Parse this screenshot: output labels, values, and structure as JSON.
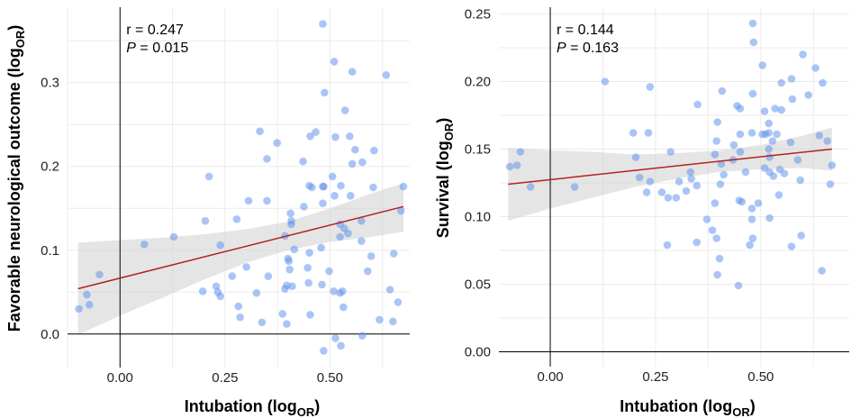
{
  "colors": {
    "point": "#6495ED",
    "fit_line": "#B22222",
    "ci_band": "#D3D3D3",
    "grid": "#EBEBEB",
    "zero_line": "#000000"
  },
  "chart_data": [
    {
      "type": "scatter",
      "xlabel": "Intubation (log",
      "xlabel_sub": "OR",
      "ylabel": "Favorable neurological outcome (log",
      "ylabel_sub": "OR",
      "annotation": {
        "r": "r = 0.247",
        "p_label": "P",
        "p_value": " = 0.015"
      },
      "xlim": [
        -0.125,
        0.69
      ],
      "ylim": [
        -0.04,
        0.39
      ],
      "x_ticks": [
        0.0,
        0.25,
        0.5
      ],
      "x_tick_labels": [
        "0.00",
        "0.25",
        "0.50"
      ],
      "y_ticks": [
        0.0,
        0.1,
        0.2,
        0.3
      ],
      "y_tick_labels": [
        "0.0",
        "0.1",
        "0.2",
        "0.3"
      ],
      "grid": true,
      "fit": {
        "intercept": 0.0667,
        "slope": 0.1265,
        "x_range": [
          -0.1,
          0.675
        ]
      },
      "ci": {
        "x": [
          -0.1,
          0,
          0.1,
          0.2,
          0.3,
          0.4,
          0.5,
          0.6,
          0.675
        ],
        "lower": [
          -0.001,
          0.022,
          0.043,
          0.065,
          0.085,
          0.1,
          0.11,
          0.116,
          0.122
        ],
        "upper": [
          0.109,
          0.112,
          0.115,
          0.119,
          0.125,
          0.134,
          0.15,
          0.168,
          0.18
        ]
      },
      "points": [
        [
          0.483,
          0.37
        ],
        [
          0.51,
          0.325
        ],
        [
          0.553,
          0.313
        ],
        [
          0.634,
          0.309
        ],
        [
          0.487,
          0.288
        ],
        [
          0.536,
          0.267
        ],
        [
          0.333,
          0.242
        ],
        [
          0.466,
          0.241
        ],
        [
          0.453,
          0.236
        ],
        [
          0.513,
          0.235
        ],
        [
          0.547,
          0.236
        ],
        [
          0.374,
          0.228
        ],
        [
          0.56,
          0.22
        ],
        [
          0.605,
          0.219
        ],
        [
          0.35,
          0.209
        ],
        [
          0.436,
          0.206
        ],
        [
          0.553,
          0.203
        ],
        [
          0.577,
          0.205
        ],
        [
          0.212,
          0.188
        ],
        [
          0.506,
          0.188
        ],
        [
          0.451,
          0.177
        ],
        [
          0.457,
          0.175
        ],
        [
          0.483,
          0.176
        ],
        [
          0.485,
          0.176
        ],
        [
          0.526,
          0.177
        ],
        [
          0.603,
          0.175
        ],
        [
          0.675,
          0.176
        ],
        [
          0.306,
          0.159
        ],
        [
          0.35,
          0.159
        ],
        [
          0.511,
          0.165
        ],
        [
          0.549,
          0.165
        ],
        [
          0.438,
          0.152
        ],
        [
          0.483,
          0.156
        ],
        [
          0.203,
          0.135
        ],
        [
          0.278,
          0.137
        ],
        [
          0.406,
          0.144
        ],
        [
          0.408,
          0.135
        ],
        [
          0.408,
          0.131
        ],
        [
          0.575,
          0.135
        ],
        [
          0.669,
          0.147
        ],
        [
          0.524,
          0.131
        ],
        [
          0.534,
          0.126
        ],
        [
          0.543,
          0.12
        ],
        [
          0.524,
          0.116
        ],
        [
          0.128,
          0.116
        ],
        [
          0.058,
          0.107
        ],
        [
          0.239,
          0.106
        ],
        [
          0.393,
          0.117
        ],
        [
          0.575,
          0.111
        ],
        [
          0.479,
          0.103
        ],
        [
          0.415,
          0.101
        ],
        [
          0.451,
          0.097
        ],
        [
          0.652,
          0.096
        ],
        [
          0.598,
          0.093
        ],
        [
          0.4,
          0.09
        ],
        [
          0.402,
          0.087
        ],
        [
          0.301,
          0.08
        ],
        [
          -0.049,
          0.071
        ],
        [
          0.404,
          0.077
        ],
        [
          0.447,
          0.079
        ],
        [
          0.498,
          0.075
        ],
        [
          0.59,
          0.075
        ],
        [
          0.267,
          0.069
        ],
        [
          0.353,
          0.069
        ],
        [
          0.229,
          0.057
        ],
        [
          0.397,
          0.058
        ],
        [
          0.41,
          0.057
        ],
        [
          0.393,
          0.054
        ],
        [
          0.449,
          0.061
        ],
        [
          0.481,
          0.059
        ],
        [
          -0.079,
          0.047
        ],
        [
          0.197,
          0.051
        ],
        [
          0.233,
          0.05
        ],
        [
          0.239,
          0.045
        ],
        [
          0.325,
          0.049
        ],
        [
          0.509,
          0.051
        ],
        [
          0.524,
          0.049
        ],
        [
          0.53,
          0.051
        ],
        [
          0.643,
          0.053
        ],
        [
          -0.073,
          0.035
        ],
        [
          -0.098,
          0.03
        ],
        [
          0.282,
          0.033
        ],
        [
          0.532,
          0.032
        ],
        [
          0.662,
          0.038
        ],
        [
          0.286,
          0.02
        ],
        [
          0.387,
          0.024
        ],
        [
          0.453,
          0.023
        ],
        [
          0.338,
          0.014
        ],
        [
          0.397,
          0.012
        ],
        [
          0.618,
          0.017
        ],
        [
          0.65,
          0.015
        ],
        [
          0.577,
          -0.002
        ],
        [
          0.513,
          -0.005
        ],
        [
          0.526,
          -0.014
        ],
        [
          0.485,
          -0.02
        ]
      ]
    },
    {
      "type": "scatter",
      "xlabel": "Intubation (log",
      "xlabel_sub": "OR",
      "ylabel": "Survival (log",
      "ylabel_sub": "OR",
      "annotation": {
        "r": "r = 0.144",
        "p_label": "P",
        "p_value": " = 0.163"
      },
      "xlim": [
        -0.122,
        0.71
      ],
      "ylim": [
        -0.011,
        0.255
      ],
      "x_ticks": [
        0.0,
        0.25,
        0.5
      ],
      "x_tick_labels": [
        "0.00",
        "0.25",
        "0.50"
      ],
      "y_ticks": [
        0.0,
        0.05,
        0.1,
        0.15,
        0.2,
        0.25
      ],
      "y_tick_labels": [
        "0.00",
        "0.05",
        "0.10",
        "0.15",
        "0.20",
        "0.25"
      ],
      "grid": true,
      "fit": {
        "intercept": 0.1274,
        "slope": 0.0338,
        "x_range": [
          -0.1,
          0.669
        ]
      },
      "ci": {
        "x": [
          -0.1,
          0,
          0.1,
          0.2,
          0.3,
          0.4,
          0.5,
          0.6,
          0.669
        ],
        "lower": [
          0.097,
          0.106,
          0.114,
          0.122,
          0.128,
          0.133,
          0.135,
          0.136,
          0.134
        ],
        "upper": [
          0.151,
          0.149,
          0.148,
          0.146,
          0.147,
          0.149,
          0.153,
          0.16,
          0.166
        ]
      },
      "points": [
        [
          0.481,
          0.243
        ],
        [
          0.483,
          0.229
        ],
        [
          0.6,
          0.22
        ],
        [
          0.504,
          0.212
        ],
        [
          0.63,
          0.21
        ],
        [
          0.13,
          0.2
        ],
        [
          0.549,
          0.199
        ],
        [
          0.573,
          0.202
        ],
        [
          0.647,
          0.199
        ],
        [
          0.237,
          0.196
        ],
        [
          0.408,
          0.193
        ],
        [
          0.481,
          0.191
        ],
        [
          0.613,
          0.19
        ],
        [
          0.575,
          0.187
        ],
        [
          0.35,
          0.183
        ],
        [
          0.444,
          0.182
        ],
        [
          0.451,
          0.18
        ],
        [
          0.509,
          0.178
        ],
        [
          0.534,
          0.18
        ],
        [
          0.549,
          0.179
        ],
        [
          0.397,
          0.17
        ],
        [
          0.519,
          0.169
        ],
        [
          0.197,
          0.162
        ],
        [
          0.233,
          0.162
        ],
        [
          0.479,
          0.162
        ],
        [
          0.451,
          0.161
        ],
        [
          0.504,
          0.161
        ],
        [
          0.511,
          0.161
        ],
        [
          0.519,
          0.162
        ],
        [
          0.538,
          0.161
        ],
        [
          0.395,
          0.156
        ],
        [
          0.528,
          0.156
        ],
        [
          0.571,
          0.155
        ],
        [
          0.639,
          0.16
        ],
        [
          0.658,
          0.156
        ],
        [
          0.436,
          0.153
        ],
        [
          0.519,
          0.15
        ],
        [
          -0.071,
          0.148
        ],
        [
          0.286,
          0.148
        ],
        [
          0.451,
          0.148
        ],
        [
          0.391,
          0.146
        ],
        [
          0.203,
          0.144
        ],
        [
          0.521,
          0.144
        ],
        [
          0.434,
          0.142
        ],
        [
          0.588,
          0.142
        ],
        [
          -0.096,
          0.137
        ],
        [
          -0.079,
          0.138
        ],
        [
          0.406,
          0.139
        ],
        [
          0.509,
          0.136
        ],
        [
          0.669,
          0.138
        ],
        [
          0.545,
          0.135
        ],
        [
          0.333,
          0.133
        ],
        [
          0.521,
          0.133
        ],
        [
          0.464,
          0.133
        ],
        [
          0.556,
          0.132
        ],
        [
          0.212,
          0.129
        ],
        [
          0.335,
          0.128
        ],
        [
          0.412,
          0.131
        ],
        [
          0.53,
          0.13
        ],
        [
          0.306,
          0.126
        ],
        [
          0.237,
          0.126
        ],
        [
          0.594,
          0.127
        ],
        [
          -0.047,
          0.122
        ],
        [
          0.058,
          0.122
        ],
        [
          0.348,
          0.123
        ],
        [
          0.404,
          0.124
        ],
        [
          0.665,
          0.124
        ],
        [
          0.229,
          0.118
        ],
        [
          0.265,
          0.118
        ],
        [
          0.323,
          0.119
        ],
        [
          0.28,
          0.114
        ],
        [
          0.299,
          0.114
        ],
        [
          0.391,
          0.11
        ],
        [
          0.449,
          0.112
        ],
        [
          0.455,
          0.111
        ],
        [
          0.494,
          0.11
        ],
        [
          0.543,
          0.116
        ],
        [
          0.479,
          0.106
        ],
        [
          0.372,
          0.098
        ],
        [
          0.479,
          0.098
        ],
        [
          0.521,
          0.099
        ],
        [
          0.385,
          0.09
        ],
        [
          0.395,
          0.084
        ],
        [
          0.481,
          0.084
        ],
        [
          0.596,
          0.086
        ],
        [
          0.278,
          0.079
        ],
        [
          0.348,
          0.081
        ],
        [
          0.474,
          0.079
        ],
        [
          0.573,
          0.078
        ],
        [
          0.402,
          0.069
        ],
        [
          0.645,
          0.06
        ],
        [
          0.397,
          0.057
        ],
        [
          0.447,
          0.049
        ]
      ]
    }
  ]
}
